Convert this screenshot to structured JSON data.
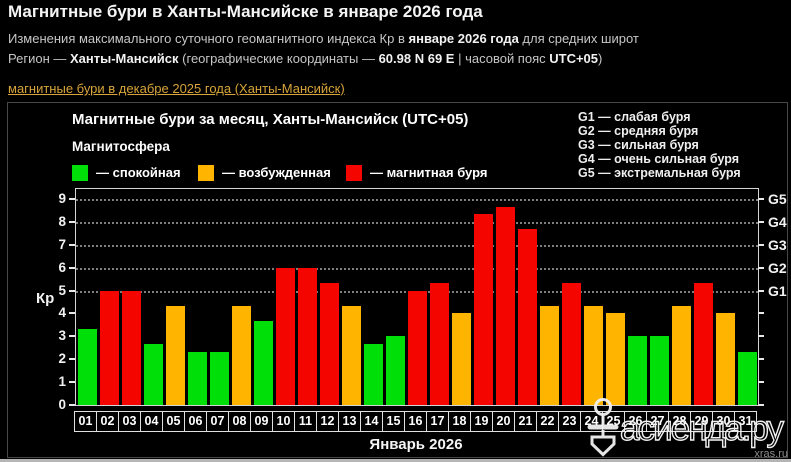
{
  "header": {
    "title": "Магнитные бури в Ханты-Мансийске в январе 2026 года",
    "line2_pre": "Изменения максимального суточного геомагнитного индекса Кр в ",
    "line2_bold": "январе 2026 года",
    "line2_post": " для средних широт",
    "line3_pre": "Регион — ",
    "line3_region": "Ханты-Мансийск",
    "line3_mid": " (географические координаты — ",
    "line3_coords": "60.98 N 69 E",
    "line3_sep": " | часовой пояс ",
    "line3_tz": "UTC+05",
    "line3_end": ")",
    "prev_month_link": "магнитные бури в декабре 2025 года (Ханты-Мансийск)"
  },
  "chart": {
    "subtitle": "Магнитосфера"
  },
  "chart_data": {
    "type": "bar",
    "title": "Магнитные бури за месяц, Ханты-Мансийск (UTC+05)",
    "ylabel": "Кр",
    "xlabel": "Январь 2026",
    "ylim": [
      0,
      9
    ],
    "yticks": [
      0,
      1,
      2,
      3,
      4,
      5,
      6,
      7,
      8,
      9
    ],
    "gridlines_at": [
      5,
      6,
      7,
      8,
      9
    ],
    "right_axis": {
      "5": "G1",
      "6": "G2",
      "7": "G3",
      "8": "G4",
      "9": "G5"
    },
    "categories": [
      "01",
      "02",
      "03",
      "04",
      "05",
      "06",
      "07",
      "08",
      "09",
      "10",
      "11",
      "12",
      "13",
      "14",
      "15",
      "16",
      "17",
      "18",
      "19",
      "20",
      "21",
      "22",
      "23",
      "24",
      "25",
      "26",
      "27",
      "28",
      "29",
      "30",
      "31"
    ],
    "values": [
      3.33,
      5,
      5,
      2.67,
      4.33,
      2.33,
      2.33,
      4.33,
      3.67,
      6,
      6,
      5.33,
      4.33,
      2.67,
      3,
      5,
      5.33,
      4,
      8.33,
      8.67,
      7.67,
      4.33,
      5.33,
      4.33,
      4,
      3,
      3,
      4.33,
      5.33,
      4,
      2.33
    ],
    "bar_states": [
      "quiet",
      "storm",
      "storm",
      "quiet",
      "excited",
      "quiet",
      "quiet",
      "excited",
      "quiet",
      "storm",
      "storm",
      "storm",
      "excited",
      "quiet",
      "quiet",
      "storm",
      "storm",
      "excited",
      "storm",
      "storm",
      "storm",
      "excited",
      "storm",
      "excited",
      "excited",
      "quiet",
      "quiet",
      "excited",
      "storm",
      "excited",
      "quiet"
    ],
    "palette": {
      "quiet": "#00e008",
      "excited": "#ffb400",
      "storm": "#f50500"
    },
    "legend_labels": [
      "— спокойная",
      "— возбужденная",
      "— магнитная буря"
    ],
    "storm_scale_legend": [
      "G1 — слабая буря",
      "G2 — средняя буря",
      "G3 — сильная буря",
      "G4 — очень сильная буря",
      "G5 — экстремальная буря"
    ],
    "legend_position": "top",
    "grid": "dotted horizontal at G-levels only"
  },
  "watermark": {
    "site": "асиенда.ру",
    "source": "xras.ru"
  }
}
